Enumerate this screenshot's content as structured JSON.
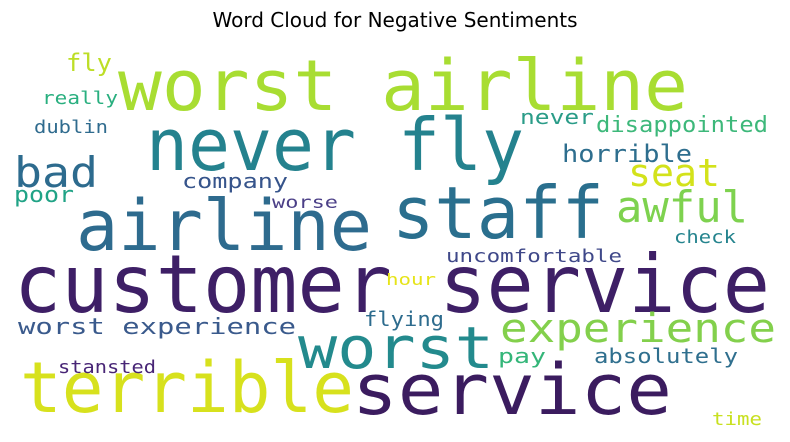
{
  "title": "Word Cloud for Negative Sentiments",
  "words": [
    {
      "text": "customer service",
      "color": "#3e1f66",
      "size": 80
    },
    {
      "text": "worst airline",
      "color": "#a8dd32",
      "size": 70
    },
    {
      "text": "never fly",
      "color": "#24828e",
      "size": 72
    },
    {
      "text": "staff",
      "color": "#2a6f8e",
      "size": 72
    },
    {
      "text": "airline",
      "color": "#2e6b8e",
      "size": 70
    },
    {
      "text": "terrible",
      "color": "#d7e11d",
      "size": 70
    },
    {
      "text": "service",
      "color": "#3b1c5f",
      "size": 70
    },
    {
      "text": "worst",
      "color": "#238a8d",
      "size": 58
    },
    {
      "text": "experience",
      "color": "#83d04c",
      "size": 40
    },
    {
      "text": "bad",
      "color": "#2d6b8e",
      "size": 42
    },
    {
      "text": "awful",
      "color": "#7ed24f",
      "size": 44
    },
    {
      "text": "seat",
      "color": "#d3e21b",
      "size": 38
    },
    {
      "text": "horrible",
      "color": "#2e6e8e",
      "size": 24
    },
    {
      "text": "disappointed",
      "color": "#3db87a",
      "size": 22
    },
    {
      "text": "never",
      "color": "#2a9c88",
      "size": 20
    },
    {
      "text": "company",
      "color": "#36548b",
      "size": 20
    },
    {
      "text": "worse",
      "color": "#4b3f87",
      "size": 17
    },
    {
      "text": "poor",
      "color": "#20a386",
      "size": 22
    },
    {
      "text": "fly",
      "color": "#bdde26",
      "size": 24
    },
    {
      "text": "really",
      "color": "#29af7f",
      "size": 18
    },
    {
      "text": "dublin",
      "color": "#2f6b8e",
      "size": 18
    },
    {
      "text": "worst experience",
      "color": "#3a5a8c",
      "size": 22
    },
    {
      "text": "flying",
      "color": "#2e6c8e",
      "size": 20
    },
    {
      "text": "uncomfortable",
      "color": "#3f4889",
      "size": 18
    },
    {
      "text": "hour",
      "color": "#e6e419",
      "size": 16
    },
    {
      "text": "check",
      "color": "#25848e",
      "size": 18
    },
    {
      "text": "pay",
      "color": "#34b679",
      "size": 20
    },
    {
      "text": "absolutely",
      "color": "#2f6f8e",
      "size": 20
    },
    {
      "text": "stansted",
      "color": "#482576",
      "size": 18
    },
    {
      "text": "time",
      "color": "#c8e020",
      "size": 18
    }
  ]
}
